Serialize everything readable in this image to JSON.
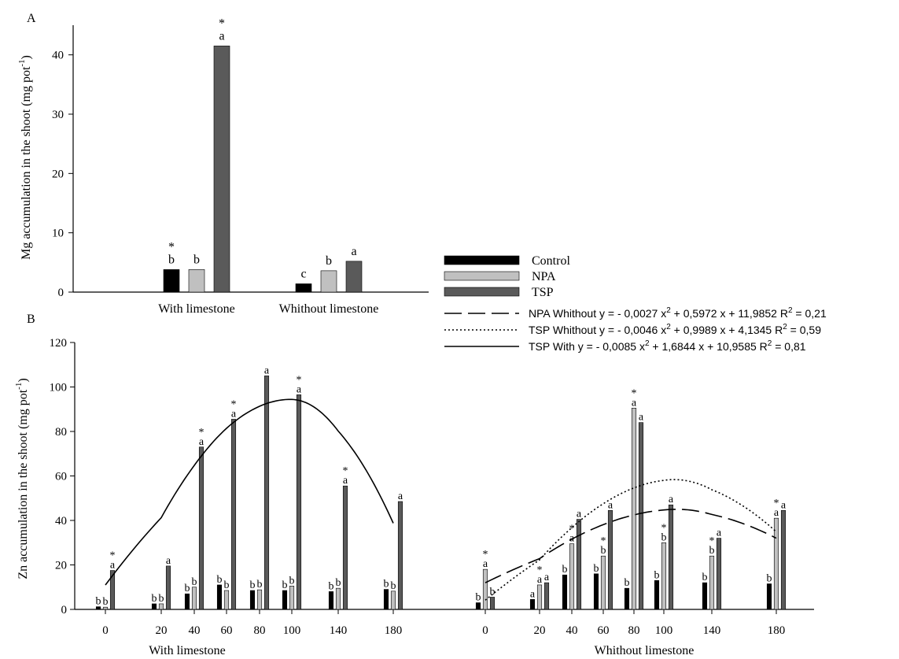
{
  "chart_data": [
    {
      "panel_label": "A",
      "type": "bar",
      "ylabel": "Mg accumulation in the shoot (mg pot",
      "ylabel_sup": "-1",
      "ylabel_close": ")",
      "ylim": [
        0,
        45
      ],
      "yticks": [
        0,
        10,
        20,
        30,
        40
      ],
      "categories": [
        "With limestone",
        "Whithout limestone"
      ],
      "series": [
        {
          "name": "Control",
          "color": "#000000",
          "values": [
            3.8,
            1.4
          ],
          "labels": [
            "b",
            "c"
          ],
          "stars": [
            true,
            false
          ]
        },
        {
          "name": "NPA",
          "color": "#c0c0c0",
          "values": [
            3.8,
            3.6
          ],
          "labels": [
            "b",
            "b"
          ],
          "stars": [
            false,
            false
          ]
        },
        {
          "name": "TSP",
          "color": "#5a5a5a",
          "values": [
            41.5,
            5.2
          ],
          "labels": [
            "a",
            "a"
          ],
          "stars": [
            true,
            false
          ]
        }
      ]
    },
    {
      "panel_label": "B",
      "type": "bar",
      "ylabel": "Zn accumulation in the shoot (mg pot",
      "ylabel_sup": "-1",
      "ylabel_close": ")",
      "ylim": [
        0,
        120
      ],
      "yticks": [
        0,
        20,
        40,
        60,
        80,
        100,
        120
      ],
      "x_ticks": [
        "0",
        "20",
        "40",
        "60",
        "80",
        "100",
        "140",
        "180"
      ],
      "groups": [
        {
          "name": "With limestone",
          "doses": [
            0,
            20,
            40,
            60,
            80,
            100,
            140,
            180
          ],
          "series": [
            {
              "name": "Control",
              "values": [
                1.2,
                2.5,
                7.0,
                11.0,
                8.5,
                8.5,
                8.0,
                9.0
              ],
              "labels": [
                "b",
                "b",
                "b",
                "b",
                "b",
                "b",
                "b",
                "b"
              ],
              "stars": [
                false,
                false,
                false,
                false,
                false,
                false,
                false,
                false
              ]
            },
            {
              "name": "NPA",
              "values": [
                1.0,
                2.5,
                10.0,
                8.5,
                8.8,
                10.5,
                9.5,
                8.2
              ],
              "labels": [
                "b",
                "b",
                "b",
                "b",
                "b",
                "b",
                "b",
                "b"
              ],
              "stars": [
                false,
                false,
                false,
                false,
                false,
                false,
                false,
                false
              ]
            },
            {
              "name": "TSP",
              "values": [
                17.5,
                19.5,
                73.0,
                85.5,
                105.0,
                96.5,
                55.5,
                48.5
              ],
              "labels": [
                "a",
                "a",
                "a",
                "a",
                "a",
                "a",
                "a",
                "a"
              ],
              "stars": [
                true,
                false,
                true,
                true,
                false,
                true,
                true,
                false
              ]
            }
          ]
        },
        {
          "name": "Whithout limestone",
          "doses": [
            0,
            20,
            40,
            60,
            80,
            100,
            140,
            180
          ],
          "series": [
            {
              "name": "Control",
              "values": [
                3.0,
                4.5,
                15.5,
                16.0,
                9.5,
                13.0,
                12.0,
                11.5
              ],
              "labels": [
                "b",
                "a",
                "b",
                "b",
                "b",
                "b",
                "b",
                "b"
              ],
              "stars": [
                false,
                false,
                false,
                false,
                false,
                false,
                false,
                false
              ]
            },
            {
              "name": "NPA",
              "values": [
                18.0,
                11.0,
                29.5,
                24.0,
                90.5,
                30.0,
                24.0,
                41.0
              ],
              "labels": [
                "a",
                "a",
                "a",
                "b",
                "a",
                "b",
                "b",
                "a"
              ],
              "stars": [
                true,
                true,
                true,
                true,
                true,
                true,
                true,
                true
              ]
            },
            {
              "name": "TSP",
              "values": [
                5.5,
                12.0,
                40.5,
                44.5,
                84.0,
                47.0,
                32.0,
                44.5
              ],
              "labels": [
                "b",
                "a",
                "a",
                "a",
                "a",
                "a",
                "a",
                "a"
              ],
              "stars": [
                false,
                false,
                false,
                false,
                false,
                false,
                false,
                false
              ]
            }
          ]
        }
      ],
      "curves": [
        {
          "name": "NPA Whithout",
          "group": 1,
          "style": "dashed",
          "coef": [
            -0.0027,
            0.5972,
            11.9852
          ],
          "x_range": [
            0,
            180
          ],
          "equation": "NPA Whithout y = - 0,0027 x",
          "equation_mid": " + 0,5972 x + 11,9852 R",
          "equation_end": " = 0,21"
        },
        {
          "name": "TSP Whithout",
          "group": 1,
          "style": "dotted",
          "coef": [
            -0.0046,
            0.9989,
            4.1345
          ],
          "x_range": [
            0,
            180
          ],
          "equation": "TSP Whithout y = - 0,0046 x",
          "equation_mid": " + 0,9989 x + 4,1345 R",
          "equation_end": " = 0,59"
        },
        {
          "name": "TSP With",
          "group": 0,
          "style": "solid",
          "coef": [
            -0.0085,
            1.6844,
            10.9585
          ],
          "x_range": [
            0,
            180
          ],
          "equation": "TSP With y = - 0,0085 x",
          "equation_mid": " + 1,6844 x + 10,9585 R",
          "equation_end": " = 0,81"
        }
      ]
    }
  ],
  "legend": [
    {
      "name": "Control",
      "color": "#000000"
    },
    {
      "name": "NPA",
      "color": "#c0c0c0"
    },
    {
      "name": "TSP",
      "color": "#5a5a5a"
    }
  ],
  "sup2": "2",
  "star": "*"
}
